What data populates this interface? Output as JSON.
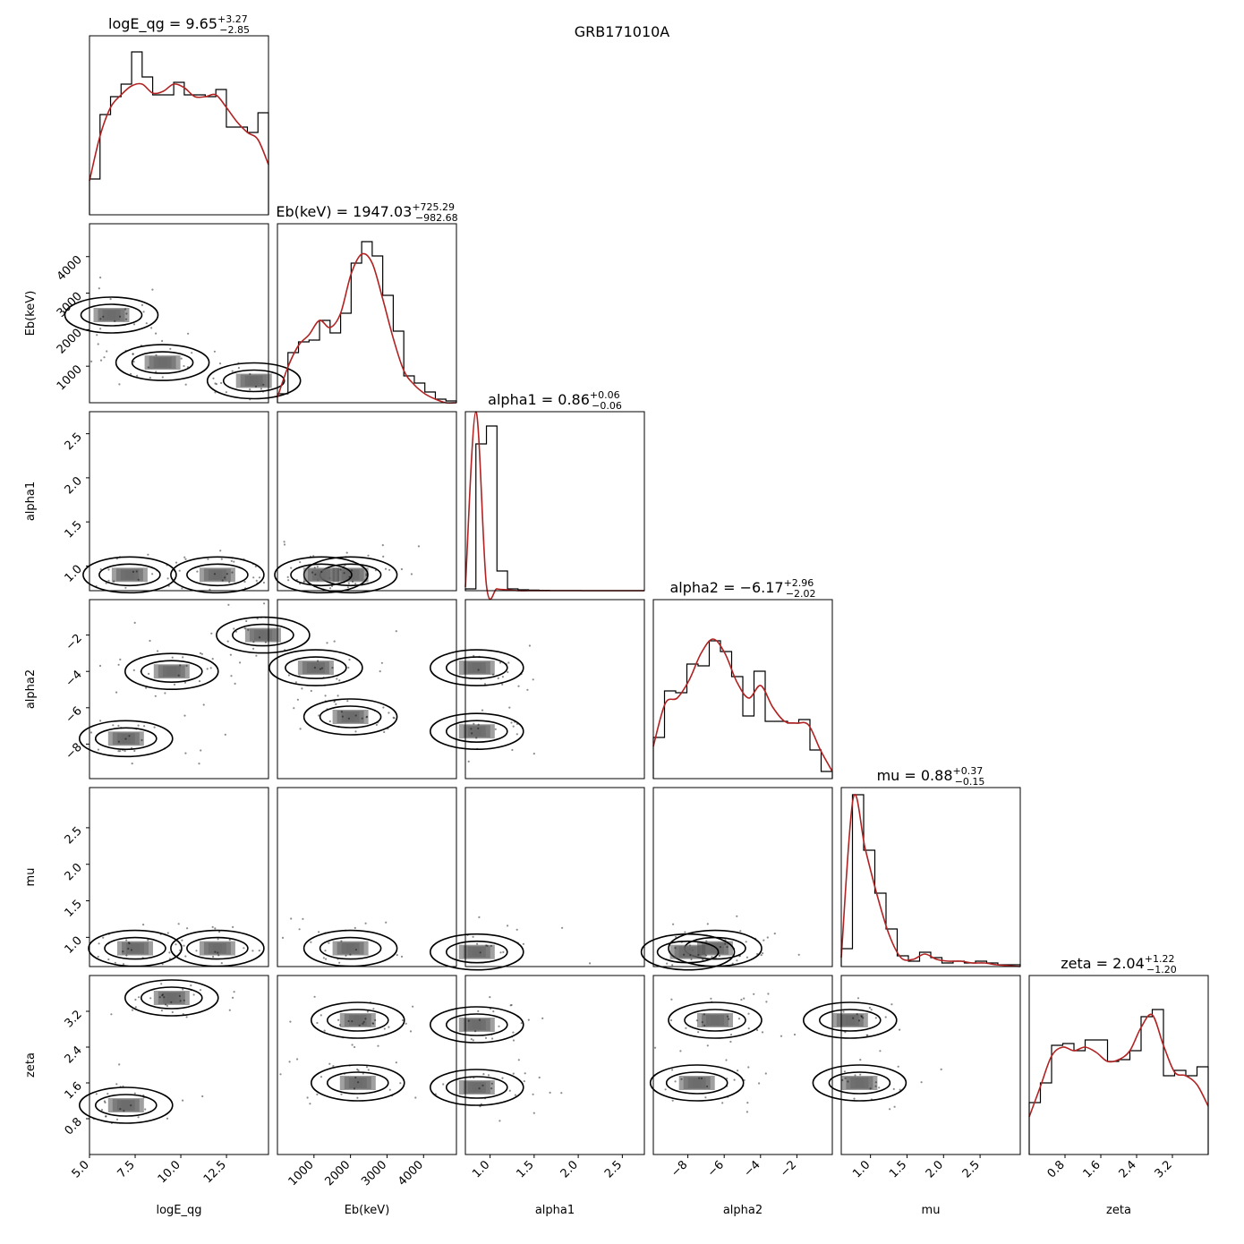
{
  "figure": {
    "title": "GRB171010A"
  },
  "colors": {
    "kde": "#b22222",
    "hist": "#000000",
    "contour": "#000000",
    "frame": "#000000"
  },
  "chart_data": {
    "type": "corner",
    "title": "GRB171010A",
    "parameters": [
      {
        "name": "logE_qg",
        "xlabel": "logE_qg",
        "range": [
          5.0,
          14.8
        ],
        "ticks": [
          5.0,
          7.5,
          10.0,
          12.5
        ],
        "tick_labels": [
          "5.0",
          "7.5",
          "10.0",
          "12.5"
        ],
        "title": {
          "lhs": "logE_qg = ",
          "median": "9.65",
          "plus": "+3.27",
          "minus": "−2.85"
        },
        "hist": [
          0.2,
          0.56,
          0.66,
          0.73,
          0.91,
          0.77,
          0.67,
          0.67,
          0.74,
          0.67,
          0.67,
          0.66,
          0.7,
          0.49,
          0.49,
          0.46,
          0.57
        ],
        "kde": [
          0.19,
          0.44,
          0.6,
          0.67,
          0.72,
          0.73,
          0.68,
          0.69,
          0.73,
          0.71,
          0.66,
          0.66,
          0.67,
          0.6,
          0.52,
          0.46,
          0.42,
          0.28
        ]
      },
      {
        "name": "Eb(keV)",
        "xlabel": "Eb(keV)",
        "range": [
          0,
          4900
        ],
        "ticks": [
          1000,
          2000,
          3000,
          4000
        ],
        "tick_labels": [
          "1000",
          "2000",
          "3000",
          "4000"
        ],
        "title": {
          "lhs": "Eb(keV) = ",
          "median": "1947.03",
          "plus": "+725.29",
          "minus": "−982.68"
        },
        "hist": [
          0.05,
          0.28,
          0.34,
          0.35,
          0.46,
          0.39,
          0.5,
          0.78,
          0.9,
          0.82,
          0.6,
          0.4,
          0.15,
          0.11,
          0.06,
          0.02,
          0.01
        ],
        "kde": [
          0.03,
          0.2,
          0.32,
          0.38,
          0.46,
          0.42,
          0.5,
          0.72,
          0.83,
          0.78,
          0.58,
          0.36,
          0.18,
          0.1,
          0.05,
          0.02,
          0.0,
          0.0
        ]
      },
      {
        "name": "alpha1",
        "xlabel": "alpha1",
        "range": [
          0.72,
          2.75
        ],
        "ticks": [
          1.0,
          1.5,
          2.0,
          2.5
        ],
        "tick_labels": [
          "1.0",
          "1.5",
          "2.0",
          "2.5"
        ],
        "title": {
          "lhs": "alpha1 = ",
          "median": "0.86",
          "plus": "+0.06",
          "minus": "−0.06"
        },
        "hist": [
          0.01,
          0.82,
          0.92,
          0.11,
          0.01,
          0.005,
          0.003,
          0.002,
          0.001,
          0.001,
          0.001,
          0.0,
          0.0,
          0.0,
          0.0,
          0.0,
          0.0
        ],
        "kde": [
          0.02,
          1.0,
          0.03,
          0.01,
          0.005,
          0.0,
          0.0,
          0.0,
          0.0,
          0.0,
          0.0,
          0.0,
          0.0,
          0.0,
          0.0,
          0.0,
          0.0,
          0.0
        ]
      },
      {
        "name": "alpha2",
        "xlabel": "alpha2",
        "range": [
          -9.9,
          -0.05
        ],
        "ticks": [
          -8,
          -6,
          -4,
          -2
        ],
        "tick_labels": [
          "−8",
          "−6",
          "−4",
          "−2"
        ],
        "title": {
          "lhs": "alpha2 = −",
          "median": "6.17",
          "plus": "+2.96",
          "minus": "−2.02"
        },
        "hist": [
          0.23,
          0.49,
          0.48,
          0.64,
          0.63,
          0.77,
          0.71,
          0.57,
          0.35,
          0.6,
          0.32,
          0.32,
          0.31,
          0.33,
          0.16,
          0.04
        ],
        "kde": [
          0.18,
          0.42,
          0.45,
          0.55,
          0.7,
          0.78,
          0.7,
          0.54,
          0.45,
          0.52,
          0.4,
          0.32,
          0.31,
          0.3,
          0.16,
          0.04
        ]
      },
      {
        "name": "mu",
        "xlabel": "mu",
        "range": [
          0.6,
          3.05
        ],
        "ticks": [
          1.0,
          1.5,
          2.0,
          2.5
        ],
        "tick_labels": [
          "1.0",
          "1.5",
          "2.0",
          "2.5"
        ],
        "title": {
          "lhs": "mu = ",
          "median": "0.88",
          "plus": "+0.37",
          "minus": "−0.15"
        },
        "hist": [
          0.1,
          0.96,
          0.65,
          0.41,
          0.21,
          0.06,
          0.03,
          0.08,
          0.05,
          0.02,
          0.03,
          0.02,
          0.03,
          0.02,
          0.01,
          0.01
        ],
        "kde": [
          0.05,
          0.94,
          0.66,
          0.4,
          0.18,
          0.05,
          0.04,
          0.07,
          0.04,
          0.03,
          0.03,
          0.02,
          0.02,
          0.01,
          0.005,
          0.0
        ]
      },
      {
        "name": "zeta",
        "xlabel": "zeta",
        "range": [
          0.0,
          4.0
        ],
        "ticks": [
          0.8,
          1.6,
          2.4,
          3.2
        ],
        "tick_labels": [
          "0.8",
          "1.6",
          "2.4",
          "3.2"
        ],
        "title": {
          "lhs": "zeta = ",
          "median": "2.04",
          "plus": "+1.22",
          "minus": "−1.20"
        },
        "hist": [
          0.29,
          0.4,
          0.61,
          0.62,
          0.58,
          0.64,
          0.64,
          0.52,
          0.53,
          0.58,
          0.77,
          0.81,
          0.44,
          0.47,
          0.44,
          0.49
        ],
        "kde": [
          0.21,
          0.38,
          0.55,
          0.6,
          0.58,
          0.6,
          0.57,
          0.52,
          0.53,
          0.58,
          0.71,
          0.78,
          0.61,
          0.46,
          0.44,
          0.39,
          0.27
        ]
      }
    ],
    "density_modes": {
      "Eb(keV)|logE_qg": [
        [
          6.2,
          2400
        ],
        [
          9.0,
          1100
        ],
        [
          14.0,
          600
        ]
      ],
      "alpha1|logE_qg": [
        [
          7.2,
          0.9
        ],
        [
          12.0,
          0.9
        ]
      ],
      "alpha1|Eb(keV)": [
        [
          2000,
          0.9
        ],
        [
          1200,
          0.9
        ]
      ],
      "alpha2|logE_qg": [
        [
          7.0,
          -7.7
        ],
        [
          9.5,
          -4.0
        ],
        [
          14.5,
          -2.0
        ]
      ],
      "alpha2|Eb(keV)": [
        [
          1050,
          -3.8
        ],
        [
          2000,
          -6.5
        ]
      ],
      "alpha2|alpha1": [
        [
          0.85,
          -7.3
        ],
        [
          0.85,
          -3.8
        ]
      ],
      "mu|logE_qg": [
        [
          7.5,
          0.85
        ],
        [
          12.0,
          0.85
        ]
      ],
      "mu|Eb(keV)": [
        [
          2000,
          0.85
        ]
      ],
      "mu|alpha1": [
        [
          0.85,
          0.8
        ]
      ],
      "mu|alpha2": [
        [
          -6.5,
          0.85
        ],
        [
          -8.0,
          0.8
        ]
      ],
      "zeta|logE_qg": [
        [
          9.5,
          3.5
        ],
        [
          7.0,
          1.1
        ]
      ],
      "zeta|Eb(keV)": [
        [
          2200,
          3.0
        ],
        [
          2200,
          1.6
        ]
      ],
      "zeta|alpha1": [
        [
          0.85,
          2.9
        ],
        [
          0.85,
          1.5
        ]
      ],
      "zeta|alpha2": [
        [
          -6.5,
          3.0
        ],
        [
          -7.5,
          1.6
        ]
      ],
      "zeta|mu": [
        [
          0.72,
          3.0
        ],
        [
          0.85,
          1.6
        ]
      ]
    }
  }
}
